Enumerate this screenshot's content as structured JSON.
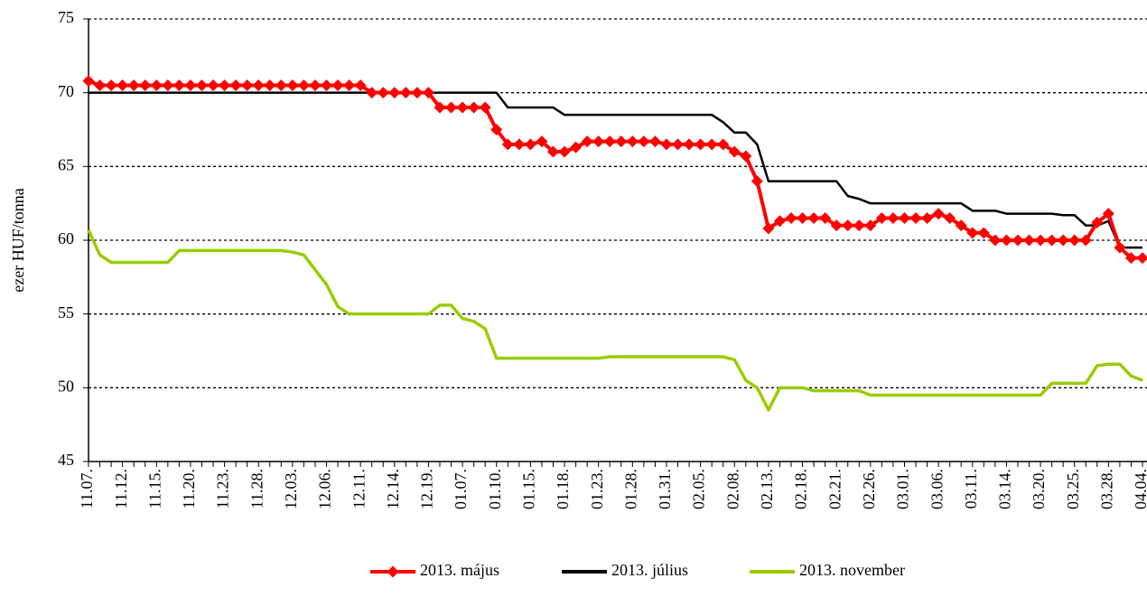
{
  "chart_data": {
    "type": "line",
    "ylabel": "ezer HUF/tonna",
    "categories": [
      "11.07.",
      null,
      null,
      "11.12.",
      null,
      null,
      "11.15.",
      null,
      null,
      "11.20.",
      null,
      null,
      "11.23.",
      null,
      null,
      "11.28.",
      null,
      null,
      "12.03.",
      null,
      null,
      "12.06.",
      null,
      null,
      "12.11.",
      null,
      null,
      "12.14.",
      null,
      null,
      "12.19.",
      null,
      null,
      "01.07.",
      null,
      null,
      "01.10.",
      null,
      null,
      "01.15.",
      null,
      null,
      "01.18.",
      null,
      null,
      "01.23.",
      null,
      null,
      "01.28.",
      null,
      null,
      "01.31.",
      null,
      null,
      "02.05.",
      null,
      null,
      "02.08.",
      null,
      null,
      "02.13.",
      null,
      null,
      "02.18.",
      null,
      null,
      "02.21.",
      null,
      null,
      "02.26.",
      null,
      null,
      "03.01.",
      null,
      null,
      "03.06.",
      null,
      null,
      "03.11.",
      null,
      null,
      "03.14.",
      null,
      null,
      "03.20.",
      null,
      null,
      "03.25.",
      null,
      null,
      "03.28.",
      null,
      null,
      "04.04."
    ],
    "series": [
      {
        "name": "2013. május",
        "color": "#ff0000",
        "marker": "diamond",
        "values": [
          70.8,
          70.5,
          70.5,
          70.5,
          70.5,
          70.5,
          70.5,
          70.5,
          70.5,
          70.5,
          70.5,
          70.5,
          70.5,
          70.5,
          70.5,
          70.5,
          70.5,
          70.5,
          70.5,
          70.5,
          70.5,
          70.5,
          70.5,
          70.5,
          70.5,
          70.0,
          70.0,
          70.0,
          70.0,
          70.0,
          70.0,
          69.0,
          69.0,
          69.0,
          69.0,
          69.0,
          67.5,
          66.5,
          66.5,
          66.5,
          66.7,
          66.0,
          66.0,
          66.3,
          66.7,
          66.7,
          66.7,
          66.7,
          66.7,
          66.7,
          66.7,
          66.5,
          66.5,
          66.5,
          66.5,
          66.5,
          66.5,
          66.0,
          65.7,
          64.0,
          60.8,
          61.3,
          61.5,
          61.5,
          61.5,
          61.5,
          61.0,
          61.0,
          61.0,
          61.0,
          61.5,
          61.5,
          61.5,
          61.5,
          61.5,
          61.8,
          61.5,
          61.0,
          60.5,
          60.5,
          60.0,
          60.0,
          60.0,
          60.0,
          60.0,
          60.0,
          60.0,
          60.0,
          60.0,
          61.2,
          61.8,
          59.5,
          58.8,
          58.8
        ]
      },
      {
        "name": "2013. július",
        "color": "#000000",
        "values": [
          70.0,
          70.0,
          70.0,
          70.0,
          70.0,
          70.0,
          70.0,
          70.0,
          70.0,
          70.0,
          70.0,
          70.0,
          70.0,
          70.0,
          70.0,
          70.0,
          70.0,
          70.0,
          70.0,
          70.0,
          70.0,
          70.0,
          70.0,
          70.0,
          70.0,
          70.0,
          70.0,
          70.0,
          70.0,
          70.0,
          70.0,
          70.0,
          70.0,
          70.0,
          70.0,
          70.0,
          70.0,
          69.0,
          69.0,
          69.0,
          69.0,
          69.0,
          68.5,
          68.5,
          68.5,
          68.5,
          68.5,
          68.5,
          68.5,
          68.5,
          68.5,
          68.5,
          68.5,
          68.5,
          68.5,
          68.5,
          68.0,
          67.3,
          67.3,
          66.5,
          64.0,
          64.0,
          64.0,
          64.0,
          64.0,
          64.0,
          64.0,
          63.0,
          62.8,
          62.5,
          62.5,
          62.5,
          62.5,
          62.5,
          62.5,
          62.5,
          62.5,
          62.5,
          62.0,
          62.0,
          62.0,
          61.8,
          61.8,
          61.8,
          61.8,
          61.8,
          61.7,
          61.7,
          61.0,
          61.0,
          61.3,
          59.5,
          59.5,
          59.5
        ]
      },
      {
        "name": "2013. november",
        "color": "#99cc00",
        "values": [
          60.7,
          59.0,
          58.5,
          58.5,
          58.5,
          58.5,
          58.5,
          58.5,
          59.3,
          59.3,
          59.3,
          59.3,
          59.3,
          59.3,
          59.3,
          59.3,
          59.3,
          59.3,
          59.2,
          59.0,
          58.0,
          57.0,
          55.5,
          55.0,
          55.0,
          55.0,
          55.0,
          55.0,
          55.0,
          55.0,
          55.0,
          55.6,
          55.6,
          54.7,
          54.5,
          54.0,
          52.0,
          52.0,
          52.0,
          52.0,
          52.0,
          52.0,
          52.0,
          52.0,
          52.0,
          52.0,
          52.1,
          52.1,
          52.1,
          52.1,
          52.1,
          52.1,
          52.1,
          52.1,
          52.1,
          52.1,
          52.1,
          51.9,
          50.5,
          50.0,
          48.5,
          50.0,
          50.0,
          50.0,
          49.8,
          49.8,
          49.8,
          49.8,
          49.8,
          49.5,
          49.5,
          49.5,
          49.5,
          49.5,
          49.5,
          49.5,
          49.5,
          49.5,
          49.5,
          49.5,
          49.5,
          49.5,
          49.5,
          49.5,
          49.5,
          50.3,
          50.3,
          50.3,
          50.3,
          51.5,
          51.6,
          51.6,
          50.8,
          50.5
        ]
      }
    ],
    "ylim": [
      45,
      75
    ],
    "yticks": [
      45,
      50,
      55,
      60,
      65,
      70,
      75
    ],
    "grid": true,
    "legend": "bottom"
  }
}
